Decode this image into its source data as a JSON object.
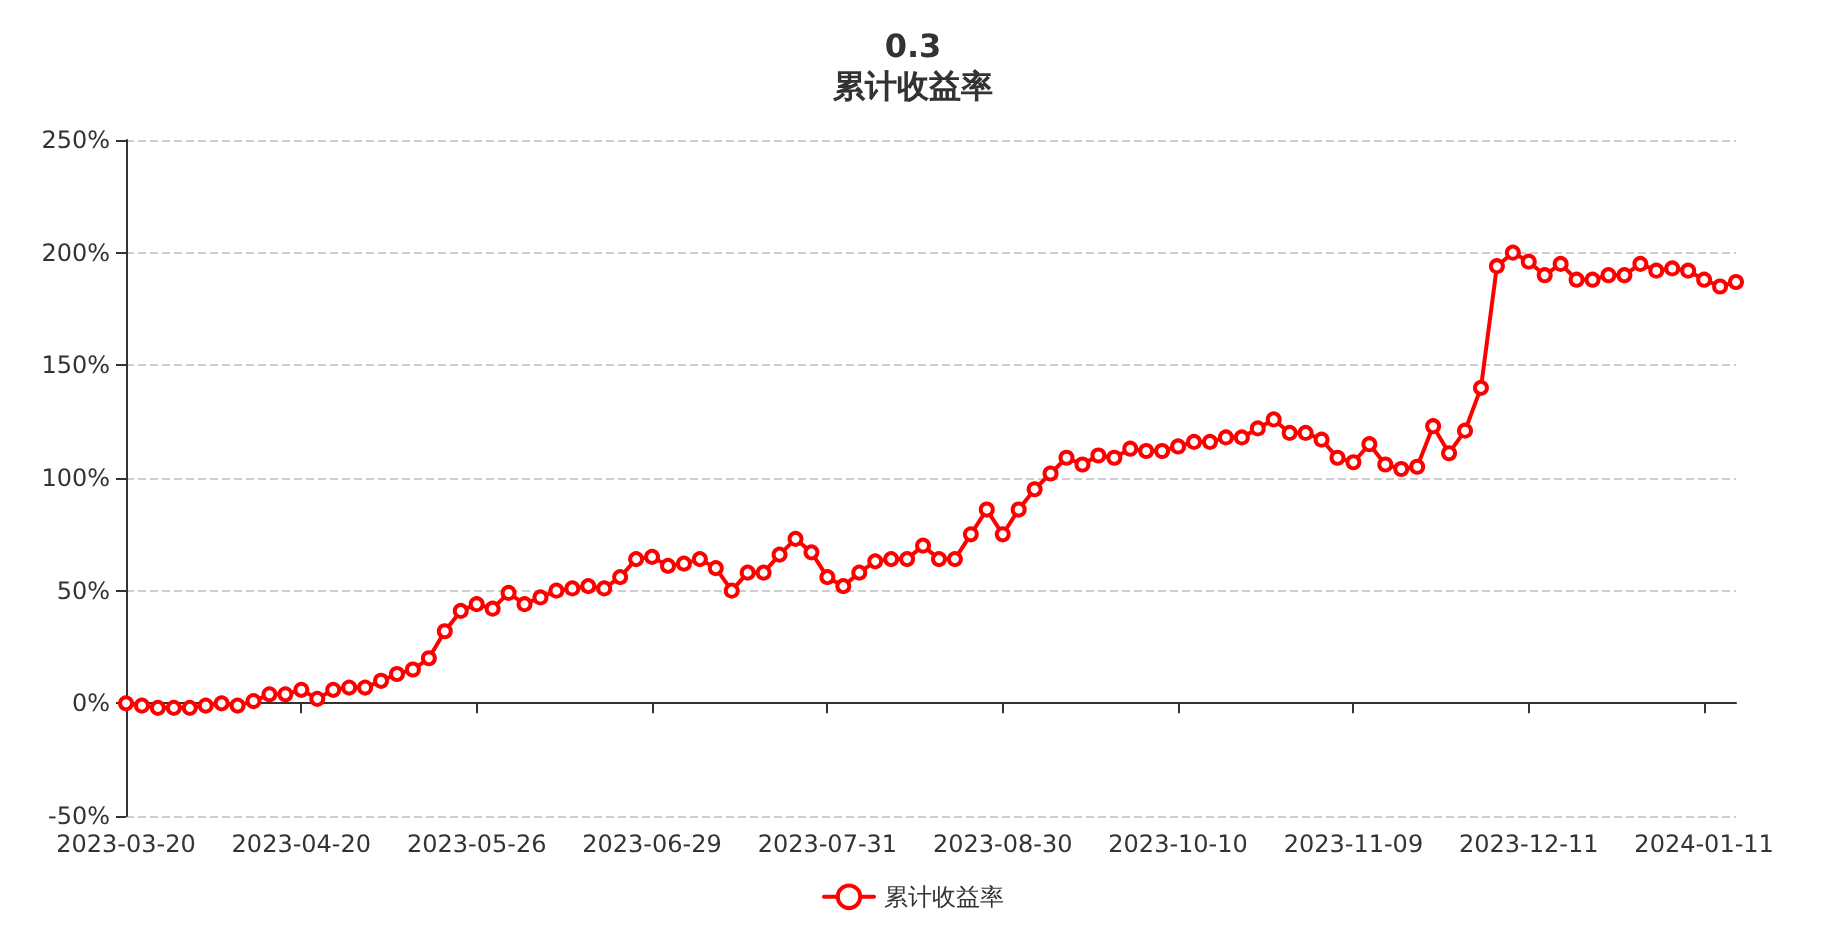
{
  "chart_data": {
    "type": "line",
    "title": "0.3",
    "subtitle": "累计收益率",
    "categories": [
      "2023-03-20",
      null,
      null,
      null,
      null,
      null,
      null,
      null,
      null,
      null,
      null,
      "2023-04-20",
      null,
      null,
      null,
      null,
      null,
      null,
      null,
      null,
      null,
      null,
      "2023-05-26",
      null,
      null,
      null,
      null,
      null,
      null,
      null,
      null,
      null,
      null,
      "2023-06-29",
      null,
      null,
      null,
      null,
      null,
      null,
      null,
      null,
      null,
      null,
      "2023-07-31",
      null,
      null,
      null,
      null,
      null,
      null,
      null,
      null,
      null,
      null,
      "2023-08-30",
      null,
      null,
      null,
      null,
      null,
      null,
      null,
      null,
      null,
      null,
      "2023-10-10",
      null,
      null,
      null,
      null,
      null,
      null,
      null,
      null,
      null,
      null,
      "2023-11-09",
      null,
      null,
      null,
      null,
      null,
      null,
      null,
      null,
      null,
      null,
      "2023-12-11",
      null,
      null,
      null,
      null,
      null,
      null,
      null,
      null,
      null,
      null,
      "2024-01-11",
      null,
      null
    ],
    "series": [
      {
        "name": "累计收益率",
        "color": "#ff0000",
        "values": [
          0,
          -1,
          -2,
          -2,
          -2,
          -1,
          0,
          -1,
          1,
          4,
          4,
          6,
          2,
          6,
          7,
          7,
          10,
          13,
          15,
          20,
          32,
          41,
          44,
          42,
          49,
          44,
          47,
          50,
          51,
          52,
          51,
          56,
          64,
          65,
          61,
          62,
          64,
          60,
          50,
          58,
          58,
          66,
          73,
          67,
          56,
          52,
          58,
          63,
          64,
          64,
          70,
          64,
          64,
          75,
          86,
          75,
          86,
          95,
          102,
          109,
          106,
          110,
          109,
          113,
          112,
          112,
          114,
          116,
          116,
          118,
          118,
          122,
          126,
          120,
          120,
          117,
          109,
          107,
          115,
          106,
          104,
          105,
          123,
          111,
          121,
          140,
          194,
          200,
          196,
          190,
          195,
          188,
          188,
          190,
          190,
          195,
          192,
          193,
          192,
          188,
          185,
          187
        ]
      }
    ],
    "ylim": [
      -50,
      250
    ],
    "yticks": [
      {
        "value": -50,
        "label": "-50%"
      },
      {
        "value": 0,
        "label": "0%"
      },
      {
        "value": 50,
        "label": "50%"
      },
      {
        "value": 100,
        "label": "100%"
      },
      {
        "value": 150,
        "label": "150%"
      },
      {
        "value": 200,
        "label": "200%"
      },
      {
        "value": 250,
        "label": "250%"
      }
    ],
    "grid": "y",
    "legend": "bottom",
    "marker": "circle",
    "line_style": "solid"
  }
}
